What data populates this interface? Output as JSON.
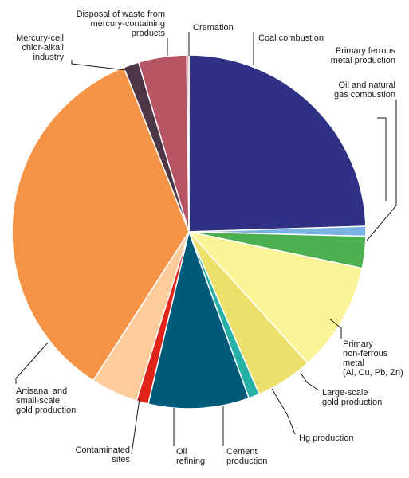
{
  "chart_data": {
    "type": "pie",
    "title": "",
    "start_angle_deg": 0,
    "direction": "clockwise",
    "series": [
      {
        "slices": [
          {
            "key": "coal",
            "label": [
              "Coal combustion"
            ],
            "value": 24.5,
            "color": "#2e3184"
          },
          {
            "key": "ferrous",
            "label": [
              "Primary ferrous",
              "metal production"
            ],
            "value": 0.9,
            "color": "#7ab3e6"
          },
          {
            "key": "oilgas",
            "label": [
              "Oil and natural",
              "gas combustion"
            ],
            "value": 2.9,
            "color": "#4caf50"
          },
          {
            "key": "nonferrous",
            "label": [
              "Primary",
              "non-ferrous",
              "metal",
              "(Al, Cu, Pb, Zn)"
            ],
            "value": 10.0,
            "color": "#fbf497"
          },
          {
            "key": "largegold",
            "label": [
              "Large-scale",
              "gold production"
            ],
            "value": 5.2,
            "color": "#ece06a"
          },
          {
            "key": "hg",
            "label": [
              "Hg production"
            ],
            "value": 1.0,
            "color": "#27b0a5"
          },
          {
            "key": "cement",
            "label": [
              "Cement",
              "production"
            ],
            "value": 9.2,
            "color": "#005b7a"
          },
          {
            "key": "oilref",
            "label": [
              "Oil",
              "refining"
            ],
            "value": 1.1,
            "color": "#e2231a"
          },
          {
            "key": "contaminated",
            "label": [
              "Contaminated",
              "sites"
            ],
            "value": 4.3,
            "color": "#fdcc9a"
          },
          {
            "key": "asgm",
            "label": [
              "Artisanal and",
              "small-scale",
              "gold production"
            ],
            "value": 34.9,
            "color": "#f59446"
          },
          {
            "key": "chloralkali",
            "label": [
              "Mercury-cell",
              "chlor-alkali",
              "industry"
            ],
            "value": 1.4,
            "color": "#4d3746"
          },
          {
            "key": "disposal",
            "label": [
              "Disposal of waste from",
              "mercury-containing",
              "products"
            ],
            "value": 4.4,
            "color": "#b65464"
          },
          {
            "key": "cremation",
            "label": [
              "Cremation"
            ],
            "value": 0.2,
            "color": "#e8a0a8"
          }
        ]
      }
    ]
  }
}
